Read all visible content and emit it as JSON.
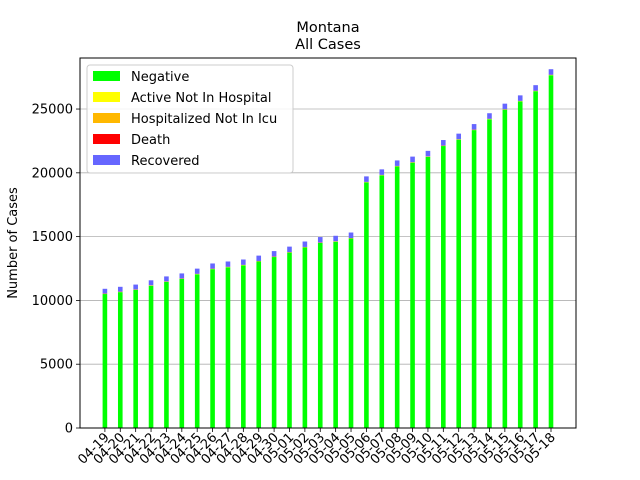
{
  "chart_data": {
    "type": "bar",
    "stacked": true,
    "title": "Montana",
    "subtitle": "All Cases",
    "xlabel": "",
    "ylabel": "Number of Cases",
    "ylim": [
      0,
      29000
    ],
    "yticks": [
      0,
      5000,
      10000,
      15000,
      20000,
      25000
    ],
    "grid": "horizontal",
    "legend_position": "top-left",
    "categories": [
      "04-19",
      "04-20",
      "04-21",
      "04-22",
      "04-23",
      "04-24",
      "04-25",
      "04-26",
      "04-27",
      "04-28",
      "04-29",
      "04-30",
      "05-01",
      "05-02",
      "05-03",
      "05-04",
      "05-05",
      "05-06",
      "05-07",
      "05-08",
      "05-09",
      "05-10",
      "05-11",
      "05-12",
      "05-13",
      "05-14",
      "05-15",
      "05-16",
      "05-17",
      "05-18"
    ],
    "series": [
      {
        "name": "Negative",
        "color": "#00ff00",
        "values": [
          10500,
          10650,
          10820,
          11150,
          11450,
          11680,
          12050,
          12450,
          12600,
          12750,
          13050,
          13400,
          13750,
          14150,
          14500,
          14600,
          14850,
          19250,
          19800,
          20500,
          20800,
          21250,
          22100,
          22600,
          23350,
          24200,
          24950,
          25600,
          26400,
          27650
        ]
      },
      {
        "name": "Active Not In Hospital",
        "color": "#ffff00",
        "values": [
          20,
          20,
          20,
          20,
          20,
          20,
          20,
          20,
          20,
          20,
          20,
          20,
          20,
          20,
          20,
          20,
          20,
          20,
          20,
          20,
          20,
          20,
          20,
          20,
          20,
          20,
          20,
          20,
          20,
          20
        ]
      },
      {
        "name": "Hospitalized Not In Icu",
        "color": "#ffb800",
        "values": [
          5,
          5,
          5,
          5,
          5,
          5,
          5,
          5,
          5,
          5,
          5,
          5,
          5,
          5,
          5,
          5,
          5,
          5,
          5,
          5,
          5,
          5,
          5,
          5,
          5,
          5,
          5,
          5,
          5,
          5
        ]
      },
      {
        "name": "Death",
        "color": "#ff0000",
        "values": [
          16,
          16,
          16,
          16,
          16,
          16,
          16,
          16,
          16,
          16,
          16,
          16,
          16,
          16,
          16,
          16,
          16,
          16,
          16,
          16,
          16,
          16,
          16,
          16,
          16,
          16,
          16,
          16,
          16,
          16
        ]
      },
      {
        "name": "Recovered",
        "color": "#6666ff",
        "values": [
          370,
          375,
          380,
          385,
          390,
          395,
          400,
          405,
          410,
          415,
          420,
          425,
          425,
          425,
          425,
          425,
          430,
          430,
          430,
          430,
          430,
          430,
          430,
          430,
          430,
          430,
          430,
          430,
          430,
          430
        ]
      }
    ]
  }
}
